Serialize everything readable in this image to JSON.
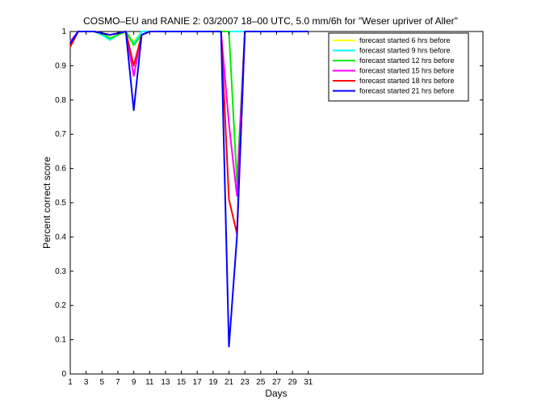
{
  "chart_data": {
    "type": "line",
    "title": "COSMO–EU and RANIE 2: 03/2007 18–00 UTC, 5.0 mm/6h for \"Weser upriver of Aller\"",
    "xlabel": "Days",
    "ylabel": "Percent correct score",
    "xlim": [
      1,
      53
    ],
    "ylim": [
      0,
      1
    ],
    "x_ticks": [
      1,
      3,
      5,
      7,
      9,
      11,
      13,
      15,
      17,
      19,
      21,
      23,
      25,
      27,
      29,
      31
    ],
    "y_ticks": [
      0,
      0.1,
      0.2,
      0.3,
      0.4,
      0.5,
      0.6,
      0.7,
      0.8,
      0.9,
      1
    ],
    "y_tick_labels": [
      "0",
      "0.1",
      "0.2",
      "0.3",
      "0.4",
      "0.5",
      "0.6",
      "0.7",
      "0.8",
      "0.9",
      "1"
    ],
    "grid": false,
    "legend_position": "top-right",
    "x": [
      1,
      2,
      3,
      4,
      5,
      6,
      7,
      8,
      9,
      10,
      11,
      12,
      13,
      14,
      15,
      16,
      17,
      18,
      19,
      20,
      21,
      22,
      23,
      24,
      25,
      26,
      27,
      28,
      29,
      30,
      31
    ],
    "series": [
      {
        "name": "forecast started 6 hrs before",
        "color": "#ffff00",
        "values": [
          0.97,
          1,
          1,
          1,
          0.99,
          0.98,
          0.99,
          1,
          0.97,
          1,
          1,
          1,
          1,
          1,
          1,
          1,
          1,
          1,
          1,
          1,
          1,
          1,
          1,
          1,
          1,
          1,
          1,
          1,
          1,
          1,
          1
        ]
      },
      {
        "name": "forecast started 9 hrs before",
        "color": "#00ffff",
        "values": [
          0.97,
          1,
          1,
          1,
          0.99,
          0.975,
          0.99,
          1,
          0.965,
          1,
          1,
          1,
          1,
          1,
          1,
          1,
          1,
          1,
          1,
          1,
          1,
          1,
          1,
          1,
          1,
          1,
          1,
          1,
          1,
          1,
          1
        ]
      },
      {
        "name": "forecast started 12 hrs before",
        "color": "#00ee00",
        "values": [
          0.97,
          1,
          1,
          1,
          0.995,
          0.98,
          0.99,
          1,
          0.96,
          0.99,
          1,
          1,
          1,
          1,
          1,
          1,
          1,
          1,
          1,
          1,
          1,
          0.56,
          1,
          1,
          1,
          1,
          1,
          1,
          1,
          1,
          1
        ]
      },
      {
        "name": "forecast started 15 hrs before",
        "color": "#ff00ff",
        "values": [
          0.97,
          1,
          1,
          1,
          0.995,
          0.99,
          0.995,
          1,
          0.87,
          0.99,
          1,
          1,
          1,
          1,
          1,
          1,
          1,
          1,
          1,
          1,
          0.73,
          0.52,
          1,
          1,
          1,
          1,
          1,
          1,
          1,
          1,
          1
        ]
      },
      {
        "name": "forecast started 18 hrs before",
        "color": "#ff0000",
        "values": [
          0.955,
          1,
          1,
          1,
          0.995,
          0.99,
          0.995,
          1,
          0.9,
          0.99,
          1,
          1,
          1,
          1,
          1,
          1,
          1,
          1,
          1,
          1,
          0.51,
          0.41,
          1,
          1,
          1,
          1,
          1,
          1,
          1,
          1,
          1
        ]
      },
      {
        "name": "forecast started 21 hrs before",
        "color": "#0000ff",
        "values": [
          0.965,
          1,
          1,
          1,
          0.995,
          0.99,
          0.995,
          1,
          0.77,
          0.99,
          1,
          1,
          1,
          1,
          1,
          1,
          1,
          1,
          1,
          1,
          0.08,
          0.4,
          1,
          1,
          1,
          1,
          1,
          1,
          1,
          1,
          1
        ]
      }
    ]
  }
}
